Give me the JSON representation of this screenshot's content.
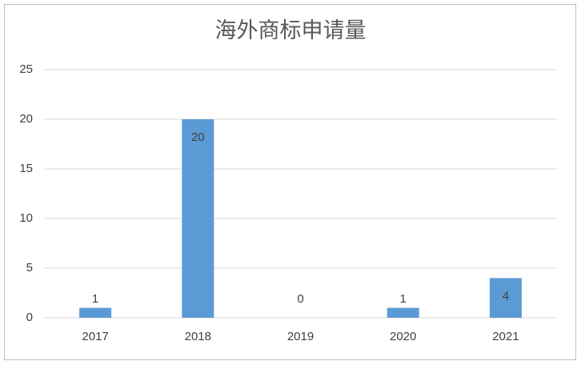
{
  "chart_data": {
    "type": "bar",
    "title": "海外商标申请量",
    "categories": [
      "2017",
      "2018",
      "2019",
      "2020",
      "2021"
    ],
    "values": [
      1,
      20,
      0,
      1,
      4
    ],
    "color": "#5b9bd5",
    "ylim": [
      0,
      25
    ],
    "yticks": [
      0,
      5,
      10,
      15,
      20,
      25
    ],
    "grid": true
  }
}
